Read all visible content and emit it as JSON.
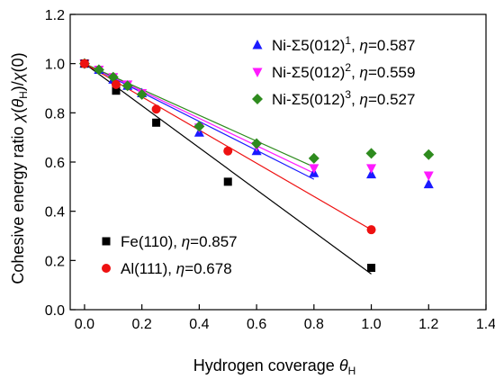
{
  "chart_data": {
    "type": "scatter",
    "xlabel": "Hydrogen coverage θ_H",
    "xlabel_parts": [
      "Hydrogen coverage ",
      "θ",
      "H"
    ],
    "ylabel": "Cohesive energy ratio χ(θ_H)/χ(0)",
    "ylabel_parts": [
      "Cohesive energy ratio ",
      "χ",
      "(",
      "θ",
      "H",
      ")/",
      "χ",
      "(0)"
    ],
    "xlim": [
      -0.05,
      1.4
    ],
    "ylim": [
      0.0,
      1.2
    ],
    "xticks": [
      "0.0",
      "0.2",
      "0.4",
      "0.6",
      "0.8",
      "1.0",
      "1.2",
      "1.4"
    ],
    "xtick_values": [
      0.0,
      0.2,
      0.4,
      0.6,
      0.8,
      1.0,
      1.2,
      1.4
    ],
    "yticks": [
      "0.0",
      "0.2",
      "0.4",
      "0.6",
      "0.8",
      "1.0",
      "1.2"
    ],
    "ytick_values": [
      0.0,
      0.2,
      0.4,
      0.6,
      0.8,
      1.0,
      1.2
    ],
    "grid": false,
    "series": [
      {
        "id": "ni1",
        "name_parts": [
          "Ni-Σ5(012)",
          "1",
          ", ",
          "η",
          "=0.587"
        ],
        "name": "Ni-Σ5(012)1, η=0.587",
        "marker": "triangle-up",
        "color": "#1a1aff",
        "x": [
          0.0,
          0.05,
          0.1,
          0.15,
          0.2,
          0.4,
          0.6,
          0.8,
          1.0,
          1.2
        ],
        "y": [
          1.0,
          0.975,
          0.935,
          0.91,
          0.88,
          0.72,
          0.645,
          0.555,
          0.55,
          0.51
        ],
        "fit": {
          "x": [
            0.0,
            0.8
          ],
          "y": [
            1.0,
            0.53
          ]
        }
      },
      {
        "id": "ni2",
        "name_parts": [
          "Ni-Σ5(012)",
          "2",
          ", ",
          "η",
          "=0.559"
        ],
        "name": "Ni-Σ5(012)2, η=0.559",
        "marker": "triangle-down",
        "color": "#ff1aff",
        "x": [
          0.0,
          0.05,
          0.1,
          0.15,
          0.2,
          0.4,
          0.6,
          0.8,
          1.0,
          1.2
        ],
        "y": [
          1.0,
          0.975,
          0.945,
          0.915,
          0.88,
          0.74,
          0.665,
          0.575,
          0.575,
          0.545
        ],
        "fit": {
          "x": [
            0.0,
            0.8
          ],
          "y": [
            1.0,
            0.555
          ]
        }
      },
      {
        "id": "ni3",
        "name_parts": [
          "Ni-Σ5(012)",
          "3",
          ", ",
          "η",
          "=0.527"
        ],
        "name": "Ni-Σ5(012)3, η=0.527",
        "marker": "diamond",
        "color": "#2e8b1e",
        "x": [
          0.0,
          0.05,
          0.1,
          0.15,
          0.2,
          0.4,
          0.6,
          0.8,
          1.0,
          1.2
        ],
        "y": [
          1.0,
          0.975,
          0.945,
          0.91,
          0.875,
          0.745,
          0.675,
          0.615,
          0.635,
          0.63
        ],
        "fit": {
          "x": [
            0.0,
            0.8
          ],
          "y": [
            1.0,
            0.58
          ]
        }
      },
      {
        "id": "fe",
        "name_parts": [
          "Fe(110), ",
          "η",
          "=0.857"
        ],
        "name": "Fe(110), η=0.857",
        "marker": "square",
        "color": "#000000",
        "x": [
          0.0,
          0.11,
          0.25,
          0.5,
          1.0
        ],
        "y": [
          1.0,
          0.89,
          0.76,
          0.52,
          0.17
        ],
        "fit": {
          "x": [
            0.0,
            1.0
          ],
          "y": [
            1.0,
            0.145
          ]
        }
      },
      {
        "id": "al",
        "name_parts": [
          "Al(111), ",
          "η",
          "=0.678"
        ],
        "name": "Al(111), η=0.678",
        "marker": "circle",
        "color": "#ee1111",
        "x": [
          0.0,
          0.11,
          0.25,
          0.5,
          1.0
        ],
        "y": [
          1.0,
          0.915,
          0.815,
          0.645,
          0.325
        ],
        "fit": {
          "x": [
            0.0,
            1.0
          ],
          "y": [
            1.0,
            0.325
          ]
        }
      }
    ]
  }
}
